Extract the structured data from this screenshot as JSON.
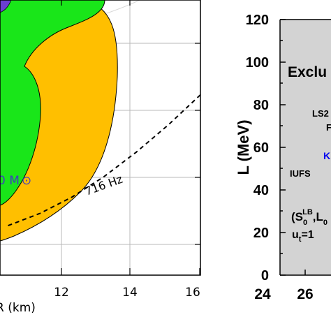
{
  "chart_data": [
    {
      "type": "area",
      "xlabel": "R (km)",
      "ylabel": "",
      "xlim": [
        9.75,
        16
      ],
      "x_ticks": [
        "12",
        "14",
        "16"
      ],
      "regions": [
        {
          "name": "green",
          "color": "#19e619"
        },
        {
          "name": "orange",
          "color": "#ffbf00"
        },
        {
          "name": "white",
          "color": "#ffffff"
        }
      ],
      "annotations": [
        {
          "text": "0 M",
          "symbol": "⊙",
          "color": "#3f3fbf"
        },
        {
          "text": "716 Hz",
          "color": "#000000"
        }
      ],
      "curves": [
        {
          "style": "dashed",
          "points": [
            [
              10.0,
              0.01
            ],
            [
              11.0,
              0.1
            ],
            [
              12.0,
              0.22
            ],
            [
              13.0,
              0.37
            ],
            [
              14.0,
              0.55
            ],
            [
              15.0,
              0.75
            ],
            [
              16.0,
              0.97
            ]
          ]
        }
      ],
      "grid": true
    },
    {
      "type": "bar",
      "xlabel": "",
      "ylabel": "L (MeV)",
      "ylim": [
        0,
        120
      ],
      "y_ticks": [
        "0",
        "20",
        "40",
        "60",
        "80",
        "100",
        "120"
      ],
      "x_ticks": [
        "24",
        "26"
      ],
      "background_color": "#d3d3d3",
      "texts": [
        {
          "text": "Exclu",
          "color": "#000000"
        },
        {
          "text": "LS2",
          "color": "#000000"
        },
        {
          "text": "F",
          "color": "#000000"
        },
        {
          "text": "K",
          "color": "#0000ee"
        },
        {
          "text": "IUFS",
          "color": "#000000"
        },
        {
          "text": "(S",
          "sup": "LB",
          "sub": "0",
          "tail": ",L",
          "tail_sub": "0",
          "color": "#000000"
        },
        {
          "text": "u",
          "sub": "t",
          "tail": "=1",
          "color": "#000000"
        }
      ]
    }
  ]
}
